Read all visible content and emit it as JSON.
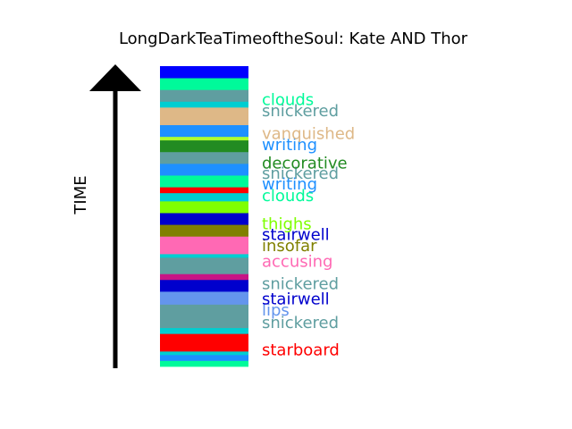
{
  "chart_data": {
    "type": "bar",
    "orientation": "stacked-vertical-strip",
    "title": "LongDarkTeaTimeoftheSoul: Kate AND Thor",
    "ylabel": "TIME",
    "axis_arrow": "up",
    "segments": [
      {
        "color": "#00FA9A",
        "size": 1.0
      },
      {
        "color": "#1E90FF",
        "size": 1.0
      },
      {
        "color": "#00CED1",
        "size": 0.6
      },
      {
        "color": "#FF0000",
        "size": 3.0
      },
      {
        "color": "#00CED1",
        "size": 1.0
      },
      {
        "color": "#5F9EA0",
        "size": 4.0
      },
      {
        "color": "#6495ED",
        "size": 2.2
      },
      {
        "color": "#0000CD",
        "size": 2.0
      },
      {
        "color": "#C71585",
        "size": 1.0
      },
      {
        "color": "#5F9EA0",
        "size": 2.8
      },
      {
        "color": "#00CED1",
        "size": 0.6
      },
      {
        "color": "#FF69B4",
        "size": 3.0
      },
      {
        "color": "#808000",
        "size": 2.0
      },
      {
        "color": "#0000CD",
        "size": 2.0
      },
      {
        "color": "#7FFF00",
        "size": 2.0
      },
      {
        "color": "#00CED1",
        "size": 1.4
      },
      {
        "color": "#FF0000",
        "size": 1.0
      },
      {
        "color": "#00FA9A",
        "size": 2.0
      },
      {
        "color": "#1E90FF",
        "size": 2.0
      },
      {
        "color": "#5F9EA0",
        "size": 2.0
      },
      {
        "color": "#228B22",
        "size": 2.0
      },
      {
        "color": "#ADFF2F",
        "size": 0.6
      },
      {
        "color": "#1E90FF",
        "size": 2.0
      },
      {
        "color": "#DEB887",
        "size": 3.0
      },
      {
        "color": "#00CED1",
        "size": 1.0
      },
      {
        "color": "#5F9EA0",
        "size": 2.0
      },
      {
        "color": "#00FA9A",
        "size": 2.0
      },
      {
        "color": "#0000FF",
        "size": 2.0
      }
    ],
    "labels": [
      {
        "text": "starboard",
        "color": "#FF0000",
        "position": 2.8
      },
      {
        "text": "snickered",
        "color": "#5F9EA0",
        "position": 7.5
      },
      {
        "text": "lips",
        "color": "#6495ED",
        "position": 9.6
      },
      {
        "text": "stairwell",
        "color": "#0000CD",
        "position": 11.5
      },
      {
        "text": "snickered",
        "color": "#5F9EA0",
        "position": 14.1
      },
      {
        "text": "accusing",
        "color": "#FF69B4",
        "position": 17.9
      },
      {
        "text": "insofar",
        "color": "#808000",
        "position": 20.6
      },
      {
        "text": "stairwell",
        "color": "#0000CD",
        "position": 22.5
      },
      {
        "text": "thighs",
        "color": "#7FFF00",
        "position": 24.3
      },
      {
        "text": "clouds",
        "color": "#00FA9A",
        "position": 29.1
      },
      {
        "text": "writing",
        "color": "#1E90FF",
        "position": 31.1
      },
      {
        "text": "snickered",
        "color": "#5F9EA0",
        "position": 32.9
      },
      {
        "text": "decorative",
        "color": "#228B22",
        "position": 34.7
      },
      {
        "text": "writing",
        "color": "#1E90FF",
        "position": 37.8
      },
      {
        "text": "vanquished",
        "color": "#DEB887",
        "position": 39.7
      },
      {
        "text": "snickered",
        "color": "#5F9EA0",
        "position": 43.6
      },
      {
        "text": "clouds",
        "color": "#00FA9A",
        "position": 45.5
      }
    ],
    "total": 51.2
  }
}
